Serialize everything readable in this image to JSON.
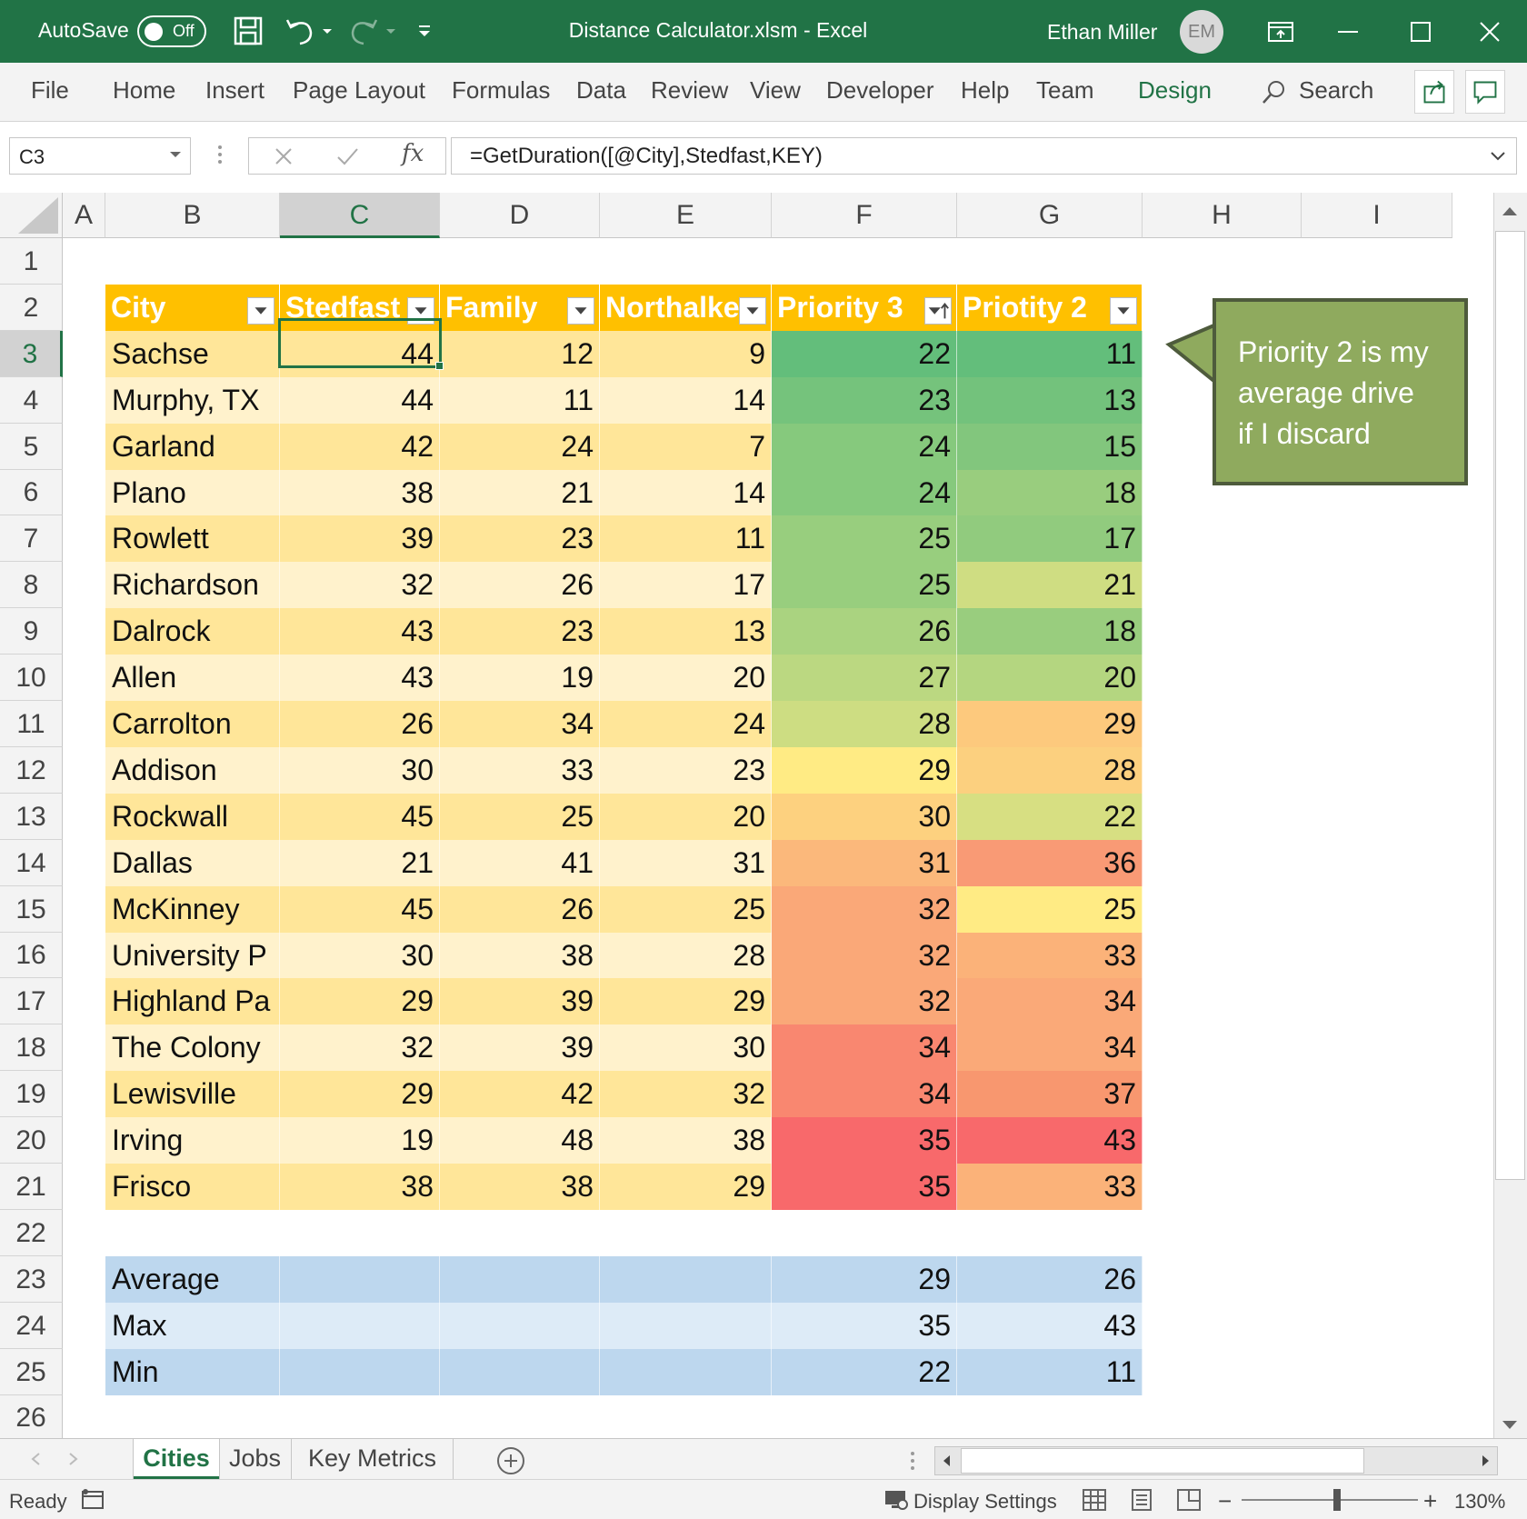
{
  "titlebar": {
    "autosave_label": "AutoSave",
    "autosave_state": "Off",
    "doc_title": "Distance Calculator.xlsm  -  Excel",
    "user_name": "Ethan Miller",
    "user_initials": "EM"
  },
  "ribbon": {
    "tabs": [
      "File",
      "Home",
      "Insert",
      "Page Layout",
      "Formulas",
      "Data",
      "Review",
      "View",
      "Developer",
      "Help",
      "Team",
      "Design"
    ],
    "search_label": "Search"
  },
  "formula_bar": {
    "name_box": "C3",
    "fx_label": "fx",
    "formula": "=GetDuration([@City],Stedfast,KEY)"
  },
  "columns": [
    "A",
    "B",
    "C",
    "D",
    "E",
    "F",
    "G",
    "H",
    "I"
  ],
  "rows": [
    "1",
    "2",
    "3",
    "4",
    "5",
    "6",
    "7",
    "8",
    "9",
    "10",
    "11",
    "12",
    "13",
    "14",
    "15",
    "16",
    "17",
    "18",
    "19",
    "20",
    "21",
    "22",
    "23",
    "24",
    "25",
    "26"
  ],
  "table": {
    "headers": [
      "City",
      "Stedfast",
      "Family",
      "Northalke",
      "Priority 3",
      "Priotity 2"
    ],
    "rows": [
      [
        "Sachse",
        "44",
        "12",
        "9",
        "22",
        "11"
      ],
      [
        "Murphy, TX",
        "44",
        "11",
        "14",
        "23",
        "13"
      ],
      [
        "Garland",
        "42",
        "24",
        "7",
        "24",
        "15"
      ],
      [
        "Plano",
        "38",
        "21",
        "14",
        "24",
        "18"
      ],
      [
        "Rowlett",
        "39",
        "23",
        "11",
        "25",
        "17"
      ],
      [
        "Richardson",
        "32",
        "26",
        "17",
        "25",
        "21"
      ],
      [
        "Dalrock",
        "43",
        "23",
        "13",
        "26",
        "18"
      ],
      [
        "Allen",
        "43",
        "19",
        "20",
        "27",
        "20"
      ],
      [
        "Carrolton",
        "26",
        "34",
        "24",
        "28",
        "29"
      ],
      [
        "Addison",
        "30",
        "33",
        "23",
        "29",
        "28"
      ],
      [
        "Rockwall",
        "45",
        "25",
        "20",
        "30",
        "22"
      ],
      [
        "Dallas",
        "21",
        "41",
        "31",
        "31",
        "36"
      ],
      [
        "McKinney",
        "45",
        "26",
        "25",
        "32",
        "25"
      ],
      [
        "University P",
        "30",
        "38",
        "28",
        "32",
        "33"
      ],
      [
        "Highland Pa",
        "29",
        "39",
        "29",
        "32",
        "34"
      ],
      [
        "The Colony",
        "32",
        "39",
        "30",
        "34",
        "34"
      ],
      [
        "Lewisville",
        "29",
        "42",
        "32",
        "34",
        "37"
      ],
      [
        "Irving",
        "19",
        "48",
        "38",
        "35",
        "43"
      ],
      [
        "Frisco",
        "38",
        "38",
        "29",
        "35",
        "33"
      ]
    ],
    "priority3_colors": [
      "#63be7b",
      "#75c37c",
      "#86c97d",
      "#86c97d",
      "#98ce7e",
      "#98ce7e",
      "#aad380",
      "#bbd881",
      "#cddd82",
      "#ffeb84",
      "#fdd17f",
      "#fbb87b",
      "#faa878",
      "#faa878",
      "#faa878",
      "#f98770",
      "#f98770",
      "#f8696b",
      "#f8696b"
    ],
    "priority2_colors": [
      "#63be7b",
      "#73c27c",
      "#82c67d",
      "#99cd7e",
      "#91cb7e",
      "#cfdd82",
      "#99cd7e",
      "#b4d680",
      "#fdc97d",
      "#fcd07f",
      "#d7df82",
      "#f99a75",
      "#ffeb84",
      "#fbb279",
      "#faa978",
      "#faa978",
      "#f8976f",
      "#f8696b",
      "#fbb279"
    ],
    "band_colors": [
      "#ffe699",
      "#fff2cc"
    ]
  },
  "summary": {
    "rows": [
      [
        "Average",
        "29",
        "26"
      ],
      [
        "Max",
        "35",
        "43"
      ],
      [
        "Min",
        "22",
        "11"
      ]
    ],
    "band_colors": [
      "#bdd7ee",
      "#ddebf7"
    ]
  },
  "callout": {
    "text_lines": [
      "Priority 2 is my",
      "average drive",
      "if I discard"
    ]
  },
  "sheets": {
    "tabs": [
      "Cities",
      "Jobs",
      "Key Metrics"
    ],
    "active": "Cities"
  },
  "statusbar": {
    "ready": "Ready",
    "display_settings": "Display Settings",
    "zoom": "130%"
  },
  "colors": {
    "excel_green": "#217346",
    "table_header": "#ffc000"
  }
}
